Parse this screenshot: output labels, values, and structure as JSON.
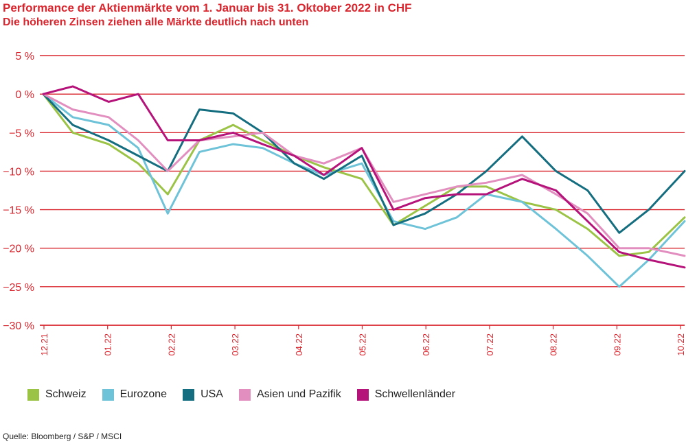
{
  "header": {
    "title": "Performance der Aktienmärkte vom 1. Januar bis 31. Oktober 2022 in CHF",
    "subtitle": "Die höheren Zinsen ziehen alle Märkte deutlich nach unten"
  },
  "source": "Quelle: Bloomberg / S&P / MSCI",
  "colors": {
    "axis": "#d9262e",
    "text": "#222222"
  },
  "chart_data": {
    "type": "line",
    "title": "Performance der Aktienmärkte vom 1. Januar bis 31. Oktober 2022 in CHF",
    "subtitle": "Die höheren Zinsen ziehen alle Märkte deutlich nach unten",
    "ylim": [
      -30,
      5
    ],
    "yticks": [
      5,
      0,
      -5,
      -10,
      -15,
      -20,
      -25,
      -30
    ],
    "ytick_labels": [
      "5 %",
      "0 %",
      "−5 %",
      "−10 %",
      "−15 %",
      "−20 %",
      "−25 %",
      "−30 %"
    ],
    "xticks": [
      "12.21",
      "01.22",
      "02.22",
      "03.22",
      "04.22",
      "05.22",
      "06.22",
      "07.22",
      "08.22",
      "09.22",
      "10.22"
    ],
    "grid": true,
    "legend_position": "bottom",
    "x": [
      "2021-12-31",
      "2022-01-14",
      "2022-01-31",
      "2022-02-14",
      "2022-02-28",
      "2022-03-15",
      "2022-03-31",
      "2022-04-14",
      "2022-04-29",
      "2022-05-13",
      "2022-05-31",
      "2022-06-15",
      "2022-06-30",
      "2022-07-15",
      "2022-07-29",
      "2022-08-15",
      "2022-08-31",
      "2022-09-15",
      "2022-09-30",
      "2022-10-14",
      "2022-10-31"
    ],
    "series": [
      {
        "name": "Schweiz",
        "color": "#9bc346",
        "values": [
          0,
          -5,
          -6.5,
          -9,
          -13,
          -6,
          -4,
          -6,
          -8,
          -9.5,
          -11,
          -17,
          -14.5,
          -12,
          -12,
          -14,
          -15,
          -17.5,
          -21,
          -20.5,
          -16
        ]
      },
      {
        "name": "Eurozone",
        "color": "#6fc3d8",
        "values": [
          0,
          -3,
          -4,
          -7,
          -15.5,
          -7.5,
          -6.5,
          -7,
          -9,
          -10.5,
          -9,
          -16.5,
          -17.5,
          -16,
          -13,
          -14,
          -17.5,
          -21,
          -25,
          -21.5,
          -16.5
        ]
      },
      {
        "name": "USA",
        "color": "#146e80",
        "values": [
          0,
          -4,
          -6,
          -8,
          -10,
          -2,
          -2.5,
          -5,
          -9,
          -11,
          -8,
          -17,
          -15.5,
          -13,
          -10,
          -5.5,
          -10,
          -12.5,
          -18,
          -15,
          -10
        ]
      },
      {
        "name": "Asien und Pazifik",
        "color": "#e28fc0",
        "values": [
          0,
          -2,
          -3,
          -6,
          -10,
          -6,
          -5.5,
          -5,
          -8,
          -9,
          -7,
          -14,
          -13,
          -12,
          -11.5,
          -10.5,
          -13,
          -15.5,
          -20,
          -20,
          -21
        ]
      },
      {
        "name": "Schwellenländer",
        "color": "#b5127a",
        "values": [
          0,
          1,
          -1,
          0,
          -6,
          -6,
          -5,
          -6.5,
          -8,
          -10.5,
          -7,
          -15,
          -13.5,
          -13,
          -13,
          -11,
          -12.5,
          -16.5,
          -20.5,
          -21.5,
          -22.5
        ]
      }
    ]
  }
}
